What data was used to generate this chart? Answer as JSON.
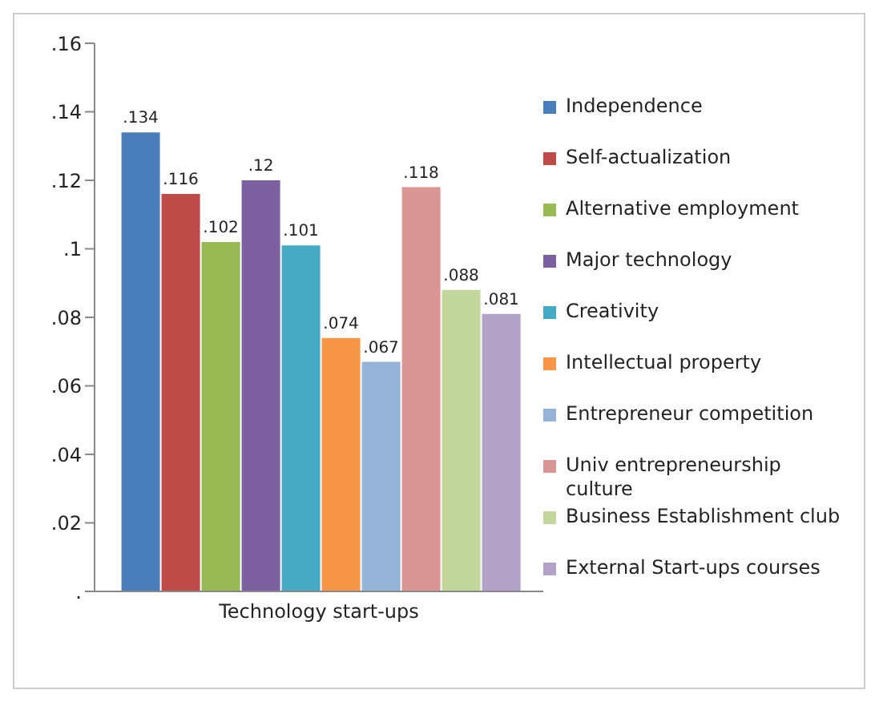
{
  "chart_data": {
    "type": "bar",
    "categories": [
      "Technology start-ups"
    ],
    "series": [
      {
        "name": "Independence",
        "color": "#4a7ebb",
        "values": [
          0.134
        ],
        "value_labels": [
          ".134"
        ]
      },
      {
        "name": "Self-actualization",
        "color": "#be4b48",
        "values": [
          0.116
        ],
        "value_labels": [
          ".116"
        ]
      },
      {
        "name": "Alternative employment",
        "color": "#98b954",
        "values": [
          0.102
        ],
        "value_labels": [
          ".102"
        ]
      },
      {
        "name": "Major technology",
        "color": "#7d60a0",
        "values": [
          0.12
        ],
        "value_labels": [
          ".12"
        ]
      },
      {
        "name": "Creativity",
        "color": "#46aac5",
        "values": [
          0.101
        ],
        "value_labels": [
          ".101"
        ]
      },
      {
        "name": "Intellectual property",
        "color": "#f79646",
        "values": [
          0.074
        ],
        "value_labels": [
          ".074"
        ]
      },
      {
        "name": "Entrepreneur competition",
        "color": "#95b3d7",
        "values": [
          0.067
        ],
        "value_labels": [
          ".067"
        ]
      },
      {
        "name": "Univ entrepreneurship culture",
        "color": "#d99694",
        "values": [
          0.118
        ],
        "value_labels": [
          ".118"
        ]
      },
      {
        "name": "Business Establishment club",
        "color": "#c3d69b",
        "values": [
          0.088
        ],
        "value_labels": [
          ".088"
        ]
      },
      {
        "name": "External Start-ups courses",
        "color": "#b3a2c7",
        "values": [
          0.081
        ],
        "value_labels": [
          ".081"
        ]
      }
    ],
    "ylim": [
      0,
      0.16
    ],
    "yticks": [
      {
        "value": 0,
        "label": "."
      },
      {
        "value": 0.02,
        "label": ".02"
      },
      {
        "value": 0.04,
        "label": ".04"
      },
      {
        "value": 0.06,
        "label": ".06"
      },
      {
        "value": 0.08,
        "label": ".08"
      },
      {
        "value": 0.1,
        "label": ".1"
      },
      {
        "value": 0.12,
        "label": ".12"
      },
      {
        "value": 0.14,
        "label": ".14"
      },
      {
        "value": 0.16,
        "label": ".16"
      }
    ],
    "grid": false,
    "legend": "right"
  }
}
